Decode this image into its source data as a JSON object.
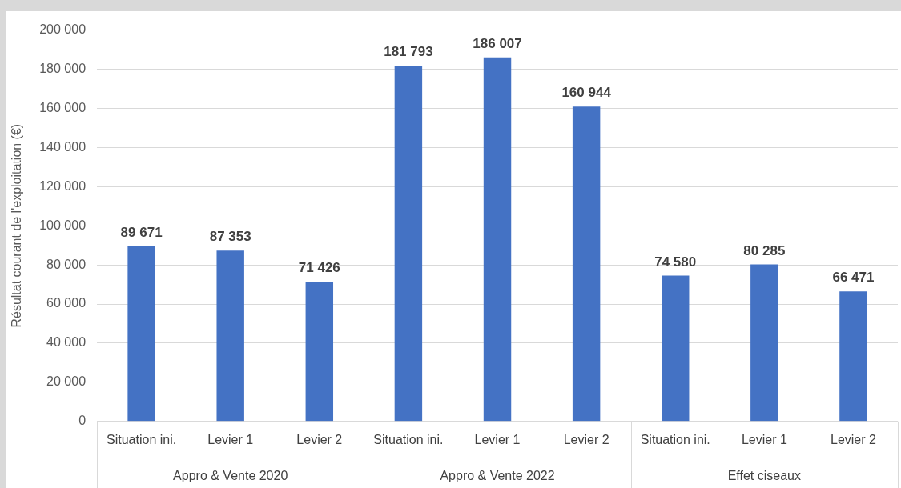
{
  "chart_data": {
    "type": "bar",
    "ylabel": "Résultat courant de l'exploitation (€)",
    "categories": [
      "Situation ini.",
      "Levier 1",
      "Levier 2",
      "Situation ini.",
      "Levier 1",
      "Levier 2",
      "Situation ini.",
      "Levier 1",
      "Levier 2"
    ],
    "values": [
      89671,
      87353,
      71426,
      181793,
      186007,
      160944,
      74580,
      80285,
      66471
    ],
    "value_labels": [
      "89 671",
      "87 353",
      "71 426",
      "181 793",
      "186 007",
      "160 944",
      "74 580",
      "80 285",
      "66 471"
    ],
    "color": "#4472c4",
    "ylim": [
      0,
      200000
    ],
    "yticks": [
      {
        "value": 0,
        "label": "0"
      },
      {
        "value": 20000,
        "label": "20 000"
      },
      {
        "value": 40000,
        "label": "40 000"
      },
      {
        "value": 60000,
        "label": "60 000"
      },
      {
        "value": 80000,
        "label": "80 000"
      },
      {
        "value": 100000,
        "label": "100 000"
      },
      {
        "value": 120000,
        "label": "120 000"
      },
      {
        "value": 140000,
        "label": "140 000"
      },
      {
        "value": 160000,
        "label": "160 000"
      },
      {
        "value": 180000,
        "label": "180 000"
      },
      {
        "value": 200000,
        "label": "200 000"
      }
    ],
    "grid": "y",
    "annotations": [
      "Appro & Vente 2020",
      "Appro & Vente 2022",
      "Effet ciseaux"
    ]
  }
}
